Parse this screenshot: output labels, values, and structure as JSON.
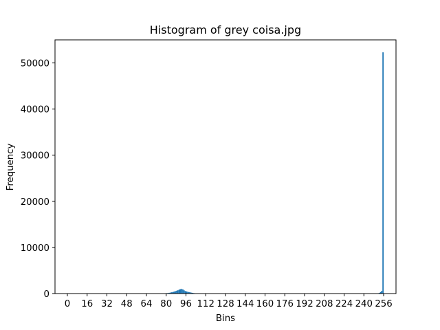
{
  "chart_data": {
    "type": "bar",
    "title": "Histogram of grey coisa.jpg",
    "xlabel": "Bins",
    "ylabel": "Frequency",
    "xlim": [
      -10,
      266
    ],
    "ylim": [
      0,
      55000
    ],
    "xticks": [
      0,
      16,
      32,
      48,
      64,
      80,
      96,
      112,
      128,
      144,
      160,
      176,
      192,
      208,
      224,
      240,
      256
    ],
    "yticks": [
      0,
      10000,
      20000,
      30000,
      40000,
      50000
    ],
    "bar_color": "#1f77b4",
    "grid": false,
    "bins": [
      78,
      79,
      80,
      81,
      82,
      83,
      84,
      85,
      86,
      87,
      88,
      89,
      90,
      91,
      92,
      93,
      94,
      95,
      96,
      97,
      98,
      99,
      100,
      101,
      102,
      103,
      104,
      105,
      252,
      253,
      254,
      255
    ],
    "values": [
      30,
      60,
      90,
      130,
      170,
      220,
      280,
      350,
      430,
      520,
      620,
      720,
      850,
      950,
      1000,
      900,
      700,
      550,
      450,
      380,
      320,
      260,
      200,
      150,
      100,
      60,
      30,
      15,
      150,
      300,
      600,
      52300
    ]
  }
}
